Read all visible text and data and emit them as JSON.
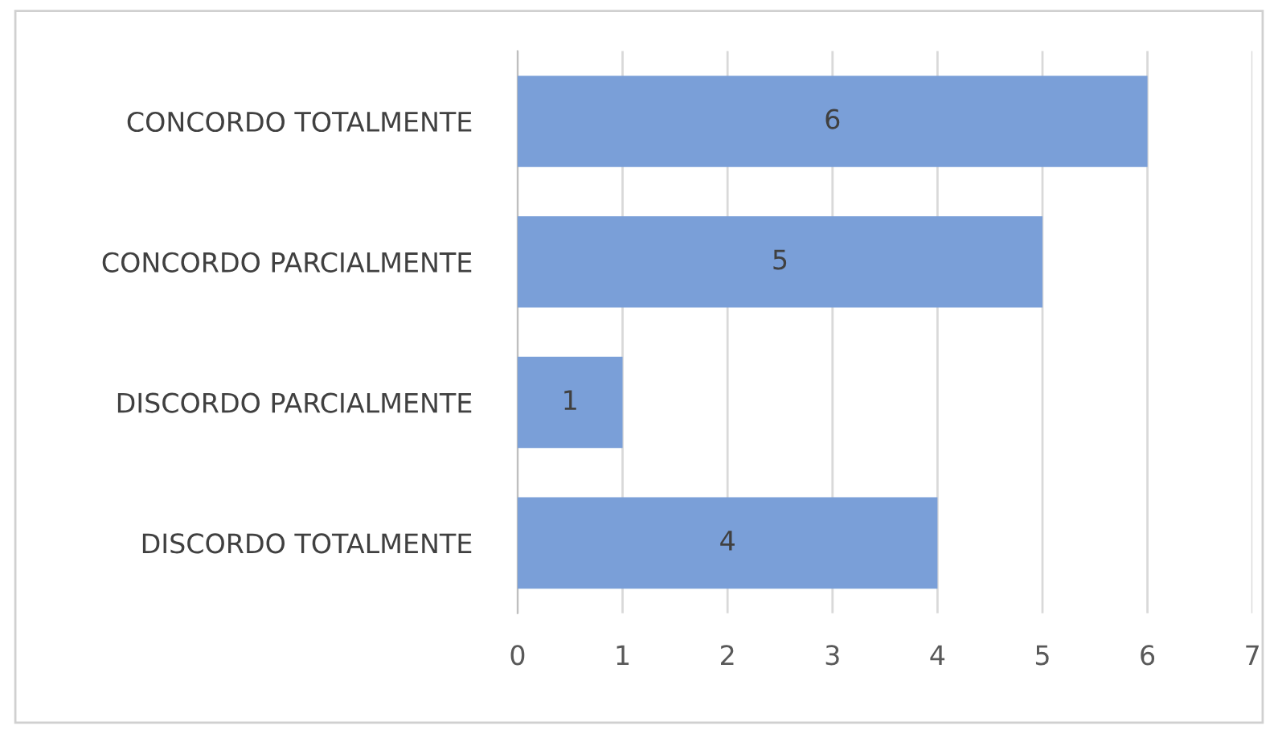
{
  "chart_data": {
    "type": "bar",
    "orientation": "horizontal",
    "categories": [
      "CONCORDO TOTALMENTE",
      "CONCORDO PARCIALMENTE",
      "DISCORDO PARCIALMENTE",
      "DISCORDO TOTALMENTE"
    ],
    "values": [
      6,
      5,
      1,
      4
    ],
    "color": "#7a9fd8",
    "data_labels": true,
    "xlim": [
      0,
      7
    ],
    "xticks": [
      0,
      1,
      2,
      3,
      4,
      5,
      6,
      7
    ],
    "grid": "x",
    "legend": false
  }
}
